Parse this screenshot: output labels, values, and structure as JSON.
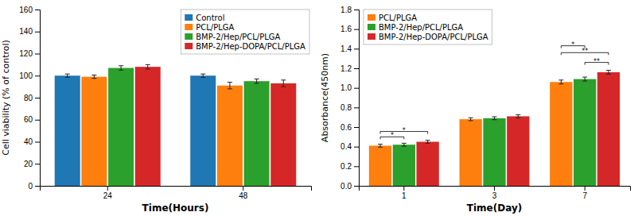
{
  "chart_data": [
    {
      "type": "bar",
      "x_label": "Time(Hours)",
      "y_label": "Cell viability (% of control)",
      "categories": [
        "24",
        "48"
      ],
      "series": [
        {
          "name": "Control",
          "values": [
            100,
            100
          ],
          "errors": [
            1.5,
            1.5
          ]
        },
        {
          "name": "PCL/PLGA",
          "values": [
            99,
            91
          ],
          "errors": [
            1.5,
            3.0
          ]
        },
        {
          "name": "BMP-2/Hep/PCL/PLGA",
          "values": [
            107,
            95
          ],
          "errors": [
            2.0,
            2.0
          ]
        },
        {
          "name": "BMP-2/Hep-DOPA/PCL/PLGA",
          "values": [
            108,
            93
          ],
          "errors": [
            2.0,
            3.0
          ]
        }
      ],
      "ylim": [
        0,
        160
      ],
      "yticks": [
        0,
        20,
        40,
        60,
        80,
        100,
        120,
        140,
        160
      ],
      "grid": false,
      "legend": "top-right"
    },
    {
      "type": "bar",
      "x_label": "Time(Day)",
      "y_label": "Absorbance(450nm)",
      "categories": [
        "1",
        "3",
        "7"
      ],
      "series": [
        {
          "name": "PCL/PLGA",
          "values": [
            0.41,
            0.68,
            1.06
          ],
          "errors": [
            0.015,
            0.015,
            0.02
          ]
        },
        {
          "name": "BMP-2/Hep/PCL/PLGA",
          "values": [
            0.42,
            0.69,
            1.09
          ],
          "errors": [
            0.015,
            0.015,
            0.02
          ]
        },
        {
          "name": "BMP-2/Hep-DOPA/PCL/PLGA",
          "values": [
            0.45,
            0.71,
            1.16
          ],
          "errors": [
            0.015,
            0.015,
            0.02
          ]
        }
      ],
      "ylim": [
        0.0,
        1.8
      ],
      "yticks": [
        {
          "value": 0.0,
          "label": "0.0"
        },
        0.2,
        0.4,
        0.6,
        0.8,
        {
          "value": 1.0,
          "label": "1.0"
        },
        1.2,
        1.4,
        1.6,
        1.8
      ],
      "grid": false,
      "legend": "top-left",
      "annotations": [
        {
          "category": "1",
          "from": "PCL/PLGA",
          "to": "BMP-2/Hep/PCL/PLGA",
          "y": 0.5,
          "text": "*"
        },
        {
          "category": "1",
          "from": "PCL/PLGA",
          "to": "BMP-2/Hep-DOPA/PCL/PLGA",
          "y": 0.555,
          "text": "*"
        },
        {
          "category": "7",
          "from": "BMP-2/Hep/PCL/PLGA",
          "to": "BMP-2/Hep-DOPA/PCL/PLGA",
          "y": 1.26,
          "text": "**"
        },
        {
          "category": "7",
          "from": "PCL/PLGA",
          "to": "BMP-2/Hep-DOPA/PCL/PLGA",
          "y": 1.36,
          "text": "**"
        },
        {
          "category": "7",
          "from": "PCL/PLGA",
          "to": "BMP-2/Hep/PCL/PLGA",
          "y": 1.43,
          "text": "*"
        }
      ]
    }
  ]
}
